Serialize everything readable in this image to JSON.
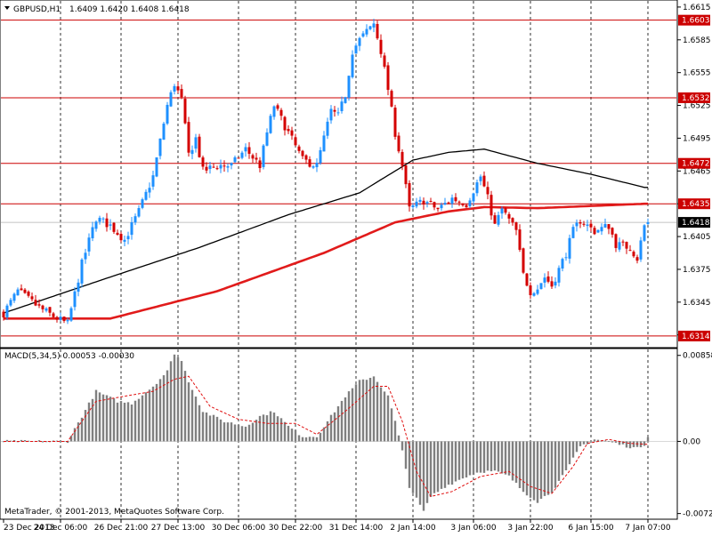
{
  "header": {
    "symbol": "GBPUSD,H1",
    "ohlc": "1.6409 1.6420 1.6408 1.6418"
  },
  "macd_header": "MACD(5,34,5) 0.00053 -0.00030",
  "copyright": "MetaTrader, © 2001-2013, MetaQuotes Software Corp.",
  "colors": {
    "bull": "#1e90ff",
    "bear": "#d40000",
    "ma_fast": "#000000",
    "ma_slow": "#e11b1b",
    "hline": "#cc0000",
    "macd_hist": "#808080",
    "macd_signal": "#e01010"
  },
  "chart_data": [
    {
      "type": "candlestick",
      "title": "GBPUSD,H1",
      "ylim": [
        1.6305,
        1.6619
      ],
      "price_ticks": [
        "1.6615",
        "1.6585",
        "1.6555",
        "1.6525",
        "1.6495",
        "1.6465",
        "1.6435",
        "1.6405",
        "1.6375",
        "1.6345",
        "1.6315"
      ],
      "levels": [
        {
          "label": "1.6603",
          "value": 1.6603
        },
        {
          "label": "1.6532",
          "value": 1.6532
        },
        {
          "label": "1.6472",
          "value": 1.6472
        },
        {
          "label": "1.6435",
          "value": 1.6435
        },
        {
          "label": "1.6314",
          "value": 1.6314
        }
      ],
      "current_price": {
        "label": "1.6418",
        "value": 1.6418
      },
      "time_labels": [
        "23 Dec 2013",
        "24 Dec 06:00",
        "26 Dec 21:00",
        "27 Dec 13:00",
        "30 Dec 06:00",
        "30 Dec 22:00",
        "31 Dec 14:00",
        "2 Jan 14:00",
        "3 Jan 06:00",
        "3 Jan 22:00",
        "6 Jan 15:00",
        "7 Jan 07:00"
      ],
      "anchors": [
        [
          0,
          1.6335
        ],
        [
          4,
          1.6355
        ],
        [
          10,
          1.634
        ],
        [
          14,
          1.6332
        ],
        [
          18,
          1.6325
        ],
        [
          22,
          1.638
        ],
        [
          26,
          1.6422
        ],
        [
          30,
          1.6415
        ],
        [
          34,
          1.6402
        ],
        [
          38,
          1.6428
        ],
        [
          42,
          1.646
        ],
        [
          46,
          1.6525
        ],
        [
          48,
          1.6545
        ],
        [
          50,
          1.653
        ],
        [
          52,
          1.648
        ],
        [
          54,
          1.6495
        ],
        [
          56,
          1.6465
        ],
        [
          60,
          1.647
        ],
        [
          64,
          1.647
        ],
        [
          68,
          1.6485
        ],
        [
          72,
          1.647
        ],
        [
          74,
          1.65
        ],
        [
          76,
          1.6525
        ],
        [
          80,
          1.65
        ],
        [
          84,
          1.6475
        ],
        [
          88,
          1.647
        ],
        [
          92,
          1.652
        ],
        [
          94,
          1.6515
        ],
        [
          96,
          1.6535
        ],
        [
          98,
          1.6575
        ],
        [
          100,
          1.6585
        ],
        [
          104,
          1.66
        ],
        [
          106,
          1.6575
        ],
        [
          108,
          1.654
        ],
        [
          110,
          1.65
        ],
        [
          112,
          1.647
        ],
        [
          114,
          1.643
        ],
        [
          118,
          1.6438
        ],
        [
          122,
          1.643
        ],
        [
          126,
          1.644
        ],
        [
          130,
          1.6435
        ],
        [
          134,
          1.646
        ],
        [
          136,
          1.644
        ],
        [
          138,
          1.6415
        ],
        [
          140,
          1.643
        ],
        [
          142,
          1.642
        ],
        [
          144,
          1.641
        ],
        [
          146,
          1.637
        ],
        [
          148,
          1.6355
        ],
        [
          150,
          1.6358
        ],
        [
          152,
          1.6368
        ],
        [
          154,
          1.636
        ],
        [
          156,
          1.6375
        ],
        [
          158,
          1.639
        ],
        [
          160,
          1.641
        ],
        [
          162,
          1.642
        ],
        [
          166,
          1.641
        ],
        [
          170,
          1.6415
        ],
        [
          172,
          1.6398
        ],
        [
          176,
          1.6395
        ],
        [
          178,
          1.6385
        ],
        [
          180,
          1.6415
        ],
        [
          181,
          1.6418
        ]
      ],
      "ma_fast": [
        [
          0,
          1.6335
        ],
        [
          30,
          1.6368
        ],
        [
          55,
          1.6395
        ],
        [
          80,
          1.6425
        ],
        [
          100,
          1.6445
        ],
        [
          115,
          1.6475
        ],
        [
          125,
          1.6482
        ],
        [
          135,
          1.6485
        ],
        [
          150,
          1.6472
        ],
        [
          165,
          1.6462
        ],
        [
          180,
          1.645
        ]
      ],
      "ma_slow": [
        [
          0,
          1.633
        ],
        [
          30,
          1.633
        ],
        [
          60,
          1.6355
        ],
        [
          90,
          1.639
        ],
        [
          110,
          1.6418
        ],
        [
          125,
          1.6428
        ],
        [
          135,
          1.6432
        ],
        [
          150,
          1.6431
        ],
        [
          165,
          1.6433
        ],
        [
          180,
          1.6435
        ]
      ]
    },
    {
      "type": "bar",
      "title": "MACD(5,34,5)",
      "ylim": [
        -0.0075,
        0.009
      ],
      "tick_labels": [
        "0.00858",
        "0.00",
        "-0.0072"
      ],
      "anchors": [
        [
          0,
          0.0
        ],
        [
          18,
          0.0
        ],
        [
          22,
          0.0025
        ],
        [
          26,
          0.005
        ],
        [
          32,
          0.004
        ],
        [
          36,
          0.0038
        ],
        [
          42,
          0.0055
        ],
        [
          46,
          0.007
        ],
        [
          48,
          0.0088
        ],
        [
          50,
          0.008
        ],
        [
          52,
          0.006
        ],
        [
          56,
          0.003
        ],
        [
          62,
          0.002
        ],
        [
          68,
          0.0015
        ],
        [
          72,
          0.0025
        ],
        [
          76,
          0.003
        ],
        [
          80,
          0.0015
        ],
        [
          84,
          0.0005
        ],
        [
          88,
          0.0005
        ],
        [
          92,
          0.0025
        ],
        [
          96,
          0.0045
        ],
        [
          100,
          0.006
        ],
        [
          104,
          0.0065
        ],
        [
          108,
          0.0045
        ],
        [
          110,
          0.002
        ],
        [
          112,
          -0.001
        ],
        [
          114,
          -0.0045
        ],
        [
          118,
          -0.007
        ],
        [
          120,
          -0.0055
        ],
        [
          124,
          -0.0045
        ],
        [
          130,
          -0.0035
        ],
        [
          134,
          -0.003
        ],
        [
          138,
          -0.003
        ],
        [
          142,
          -0.0035
        ],
        [
          146,
          -0.005
        ],
        [
          150,
          -0.006
        ],
        [
          154,
          -0.005
        ],
        [
          158,
          -0.003
        ],
        [
          162,
          -0.0005
        ],
        [
          166,
          0.0002
        ],
        [
          170,
          0.0
        ],
        [
          174,
          -0.0004
        ],
        [
          178,
          -0.0007
        ],
        [
          180,
          -0.0003
        ],
        [
          181,
          0.0005
        ]
      ],
      "signal": [
        [
          0,
          0.0
        ],
        [
          18,
          0.0
        ],
        [
          26,
          0.004
        ],
        [
          34,
          0.0045
        ],
        [
          42,
          0.005
        ],
        [
          48,
          0.0062
        ],
        [
          52,
          0.0065
        ],
        [
          58,
          0.0035
        ],
        [
          66,
          0.0022
        ],
        [
          74,
          0.0018
        ],
        [
          82,
          0.0018
        ],
        [
          88,
          0.0007
        ],
        [
          96,
          0.003
        ],
        [
          104,
          0.0055
        ],
        [
          108,
          0.0055
        ],
        [
          112,
          0.002
        ],
        [
          116,
          -0.003
        ],
        [
          120,
          -0.0055
        ],
        [
          126,
          -0.005
        ],
        [
          134,
          -0.0035
        ],
        [
          142,
          -0.003
        ],
        [
          148,
          -0.0045
        ],
        [
          154,
          -0.0052
        ],
        [
          160,
          -0.0025
        ],
        [
          164,
          -0.0002
        ],
        [
          170,
          0.0002
        ],
        [
          176,
          -0.0002
        ],
        [
          181,
          -0.0003
        ]
      ]
    }
  ]
}
